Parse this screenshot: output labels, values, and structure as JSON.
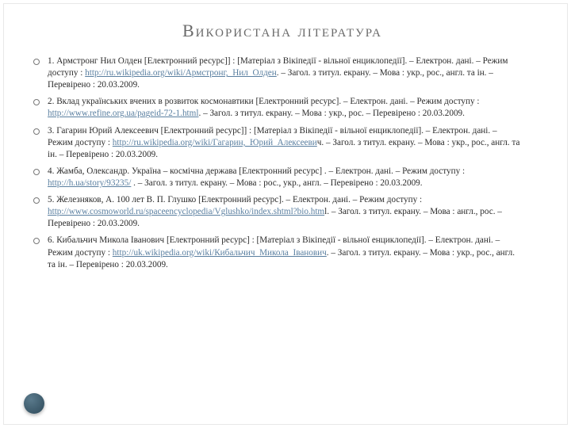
{
  "title": "Використана література",
  "title_color": "#6a6a6a",
  "title_fontsize": 22,
  "text_color": "#2b2b2b",
  "link_color": "#5a7fa0",
  "background_color": "#ffffff",
  "bullet_border_color": "#777777",
  "refs": [
    {
      "pre": "1. Армстронг Нил Олден [Електронний ресурс]] : [Матеріал з Вікіпедії - вільної енциклопедії]. – Електрон. дані. – Режим доступу : ",
      "link": "http://ru.wikipedia.org/wiki/Армстронг,_Нил_Олден",
      "post": ". – Загол. з титул. екрану. – Мова : укр., рос., англ. та ін. – Перевірено : 20.03.2009."
    },
    {
      "pre": "2. Вклад українських вчених в розвиток космонавтики [Електронний ресурс]. – Електрон. дані. – Режим доступу : ",
      "link": "http://www.refine.org.ua/pageid-72-1.html",
      "post": ". – Загол. з титул. екрану. – Мова : укр., рос. – Перевірено : 20.03.2009."
    },
    {
      "pre": "3. Гагарин Юрий Алексеевич [Електронний ресурс]] : [Матеріал з Вікіпедії - вільної енциклопедії]. – Електрон. дані. – Режим доступу : ",
      "link": "http://ru.wikipedia.org/wiki/Гагарин,_Юрий_Алексееви",
      "post": "ч. – Загол. з титул. екрану. – Мова : укр., рос., англ. та ін. – Перевірено : 20.03.2009."
    },
    {
      "pre": "4. Жамба, Олександр. Україна – космічна держава [Електронний ресурс] . – Електрон. дані. – Режим доступу : ",
      "link": "http://h.ua/story/93235/",
      "post": " . – Загол. з титул. екрану. – Мова : рос., укр., англ. – Перевірено : 20.03.2009."
    },
    {
      "pre": "5. Железняков, А. 100 лет В. П. Глушко [Електронний ресурс]. – Електрон. дані. – Режим доступу : ",
      "link": "http://www.cosmoworld.ru/spaceencyclopedia/Vglushko/index.shtml?bio.htm",
      "post": "l. – Загол. з титул. екрану. – Мова : англ., рос. – Перевірено : 20.03.2009."
    },
    {
      "pre": "6. Кибальчич Микола Іванович [Електронний ресурс] : [Матеріал з Вікіпедії - вільної енциклопедії]. – Електрон. дані. – Режим доступу : ",
      "link": "http://uk.wikipedia.org/wiki/Кибальчич_Микола_Іванович",
      "post": ". – Загол. з титул. екрану. – Мова : укр., рос., англ. та ін. – Перевірено : 20.03.2009."
    }
  ]
}
